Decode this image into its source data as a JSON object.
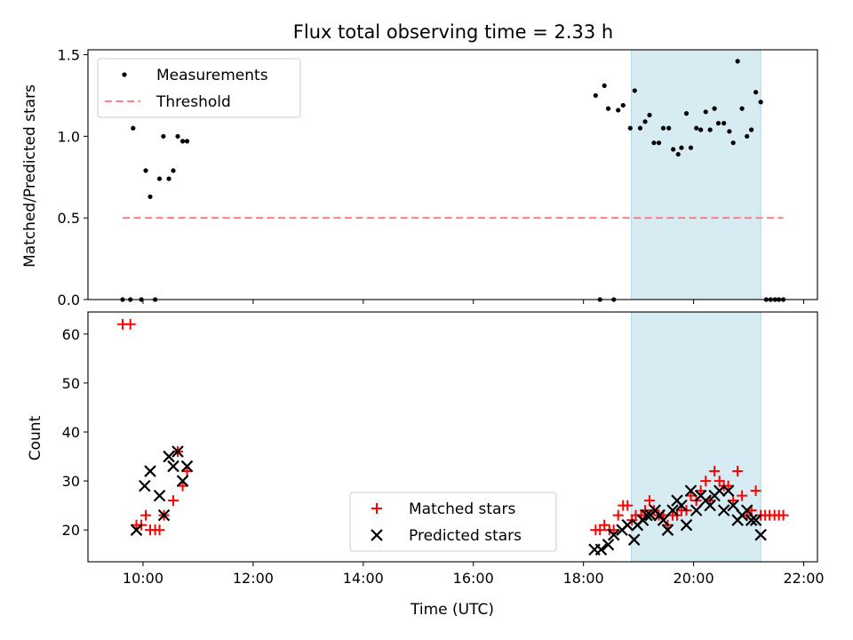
{
  "chart_data": {
    "title": "Flux total observing time = 2.33 h",
    "shaded_interval": {
      "start": 18.87,
      "end": 21.22,
      "color": "#add8e6",
      "alpha": 0.5
    },
    "x_axis": {
      "label": "Time (UTC)",
      "lim": [
        9.0,
        22.25
      ],
      "ticks": [
        10,
        12,
        14,
        16,
        18,
        20,
        22
      ],
      "tick_labels": [
        "10:00",
        "12:00",
        "14:00",
        "16:00",
        "18:00",
        "20:00",
        "22:00"
      ]
    },
    "panels": [
      {
        "type": "scatter",
        "ylabel": "Matched/Predicted stars",
        "ylim": [
          0,
          1.53
        ],
        "yticks": [
          0.0,
          0.5,
          1.0,
          1.5
        ],
        "ytick_labels": [
          "0.0",
          "0.5",
          "1.0",
          "1.5"
        ],
        "legend": {
          "placement": "upper-left"
        },
        "series": [
          {
            "name": "Measurements",
            "marker": "dot",
            "color": "#000000",
            "points": [
              [
                9.63,
                0
              ],
              [
                9.77,
                0
              ],
              [
                9.82,
                1.05
              ],
              [
                9.97,
                0
              ],
              [
                10.05,
                0.79
              ],
              [
                10.13,
                0.63
              ],
              [
                10.22,
                0
              ],
              [
                10.3,
                0.74
              ],
              [
                10.37,
                1.0
              ],
              [
                10.47,
                0.74
              ],
              [
                10.55,
                0.79
              ],
              [
                10.63,
                1.0
              ],
              [
                10.72,
                0.97
              ],
              [
                10.8,
                0.97
              ],
              [
                18.22,
                1.25
              ],
              [
                18.3,
                0
              ],
              [
                18.38,
                1.31
              ],
              [
                18.45,
                1.17
              ],
              [
                18.55,
                0
              ],
              [
                18.63,
                1.16
              ],
              [
                18.72,
                1.19
              ],
              [
                18.85,
                1.05
              ],
              [
                18.93,
                1.28
              ],
              [
                19.03,
                1.05
              ],
              [
                19.12,
                1.09
              ],
              [
                19.2,
                1.13
              ],
              [
                19.28,
                0.96
              ],
              [
                19.37,
                0.96
              ],
              [
                19.45,
                1.05
              ],
              [
                19.55,
                1.05
              ],
              [
                19.63,
                0.92
              ],
              [
                19.72,
                0.89
              ],
              [
                19.78,
                0.93
              ],
              [
                19.87,
                1.14
              ],
              [
                19.95,
                0.93
              ],
              [
                20.05,
                1.05
              ],
              [
                20.13,
                1.04
              ],
              [
                20.22,
                1.15
              ],
              [
                20.3,
                1.04
              ],
              [
                20.38,
                1.17
              ],
              [
                20.45,
                1.08
              ],
              [
                20.55,
                1.08
              ],
              [
                20.65,
                1.03
              ],
              [
                20.72,
                0.96
              ],
              [
                20.8,
                1.46
              ],
              [
                20.88,
                1.17
              ],
              [
                20.97,
                1.0
              ],
              [
                21.05,
                1.04
              ],
              [
                21.13,
                1.27
              ],
              [
                21.22,
                1.21
              ],
              [
                21.32,
                0
              ],
              [
                21.4,
                0
              ],
              [
                21.48,
                0
              ],
              [
                21.55,
                0
              ],
              [
                21.63,
                0
              ]
            ]
          },
          {
            "name": "Threshold",
            "marker": "dashed-line",
            "color": "#ff7f7f",
            "points": [
              [
                9.63,
                0.5
              ],
              [
                21.63,
                0.5
              ]
            ]
          }
        ]
      },
      {
        "type": "scatter",
        "ylabel": "Count",
        "ylim": [
          13.5,
          64.5
        ],
        "yticks": [
          20,
          30,
          40,
          50,
          60
        ],
        "ytick_labels": [
          "20",
          "30",
          "40",
          "50",
          "60"
        ],
        "legend": {
          "placement": "lower-center"
        },
        "series": [
          {
            "name": "Matched stars",
            "marker": "plus",
            "color": "#ff0000",
            "points": [
              [
                9.63,
                62
              ],
              [
                9.77,
                62
              ],
              [
                9.88,
                21
              ],
              [
                9.97,
                21
              ],
              [
                10.05,
                23
              ],
              [
                10.13,
                20
              ],
              [
                10.22,
                20
              ],
              [
                10.3,
                20
              ],
              [
                10.38,
                23
              ],
              [
                10.55,
                26
              ],
              [
                10.63,
                36
              ],
              [
                10.72,
                29
              ],
              [
                10.8,
                32
              ],
              [
                18.22,
                20
              ],
              [
                18.3,
                20
              ],
              [
                18.38,
                21
              ],
              [
                18.47,
                20
              ],
              [
                18.55,
                20
              ],
              [
                18.63,
                23
              ],
              [
                18.72,
                25
              ],
              [
                18.8,
                25
              ],
              [
                18.88,
                22
              ],
              [
                18.95,
                23
              ],
              [
                19.05,
                23
              ],
              [
                19.12,
                24
              ],
              [
                19.2,
                26
              ],
              [
                19.28,
                24
              ],
              [
                19.37,
                23
              ],
              [
                19.45,
                23
              ],
              [
                19.53,
                21
              ],
              [
                19.62,
                23
              ],
              [
                19.7,
                23
              ],
              [
                19.78,
                24
              ],
              [
                19.87,
                24
              ],
              [
                19.95,
                27
              ],
              [
                20.05,
                26
              ],
              [
                20.13,
                28
              ],
              [
                20.22,
                30
              ],
              [
                20.3,
                26
              ],
              [
                20.38,
                32
              ],
              [
                20.47,
                30
              ],
              [
                20.55,
                29
              ],
              [
                20.63,
                29
              ],
              [
                20.72,
                26
              ],
              [
                20.8,
                32
              ],
              [
                20.88,
                27
              ],
              [
                20.97,
                23
              ],
              [
                21.05,
                24
              ],
              [
                21.13,
                28
              ],
              [
                21.22,
                23
              ],
              [
                21.3,
                23
              ],
              [
                21.38,
                23
              ],
              [
                21.47,
                23
              ],
              [
                21.55,
                23
              ],
              [
                21.63,
                23
              ]
            ]
          },
          {
            "name": "Predicted stars",
            "marker": "x",
            "color": "#000000",
            "points": [
              [
                9.88,
                20
              ],
              [
                10.03,
                29
              ],
              [
                10.13,
                32
              ],
              [
                10.3,
                27
              ],
              [
                10.38,
                23
              ],
              [
                10.47,
                35
              ],
              [
                10.55,
                33
              ],
              [
                10.63,
                36
              ],
              [
                10.72,
                30
              ],
              [
                10.8,
                33
              ],
              [
                18.2,
                16
              ],
              [
                18.32,
                16
              ],
              [
                18.45,
                17
              ],
              [
                18.55,
                19
              ],
              [
                18.7,
                20
              ],
              [
                18.8,
                21
              ],
              [
                18.92,
                18
              ],
              [
                18.98,
                21
              ],
              [
                19.08,
                22
              ],
              [
                19.15,
                23
              ],
              [
                19.22,
                23
              ],
              [
                19.3,
                24
              ],
              [
                19.38,
                23
              ],
              [
                19.45,
                22
              ],
              [
                19.53,
                20
              ],
              [
                19.62,
                24
              ],
              [
                19.7,
                26
              ],
              [
                19.78,
                25
              ],
              [
                19.87,
                21
              ],
              [
                19.95,
                28
              ],
              [
                20.05,
                24
              ],
              [
                20.13,
                27
              ],
              [
                20.22,
                26
              ],
              [
                20.3,
                25
              ],
              [
                20.38,
                27
              ],
              [
                20.47,
                28
              ],
              [
                20.55,
                24
              ],
              [
                20.63,
                28
              ],
              [
                20.72,
                25
              ],
              [
                20.8,
                22
              ],
              [
                20.88,
                23
              ],
              [
                20.97,
                24
              ],
              [
                21.05,
                22
              ],
              [
                21.13,
                22
              ],
              [
                21.22,
                19
              ]
            ]
          }
        ]
      }
    ]
  }
}
